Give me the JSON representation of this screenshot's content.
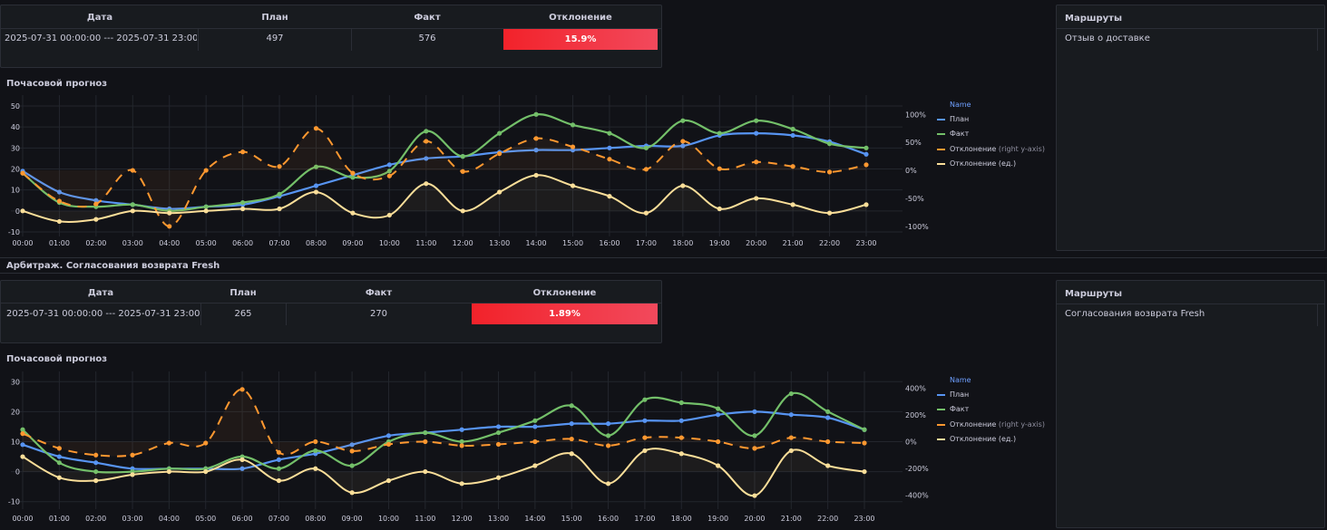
{
  "dashboards": [
    {
      "table": {
        "headers": [
          "Дата",
          "План",
          "Факт",
          "Отклонение"
        ],
        "row": [
          "2025-07-31 00:00:00 --- 2025-07-31 23:00:00",
          "497",
          "576",
          "15.9%"
        ]
      },
      "chart_title": "Почасовой прогноз",
      "routes": {
        "title": "Маршруты",
        "item": "Отзыв о доставке"
      }
    },
    {
      "section_title": "Арбитраж. Согласования возврата Fresh",
      "table": {
        "headers": [
          "Дата",
          "План",
          "Факт",
          "Отклонение"
        ],
        "row": [
          "2025-07-31 00:00:00 --- 2025-07-31 23:00:00",
          "265",
          "270",
          "1.89%"
        ]
      },
      "chart_title": "Почасовой прогноз",
      "routes": {
        "title": "Маршруты",
        "item": "Согласования возврата Fresh"
      }
    }
  ],
  "colors": {
    "plan": "#5794f2",
    "fact": "#73bf69",
    "dev_pct": "#ff9830",
    "dev_units": "#fade99",
    "deviation_bg": "#f2222a",
    "panel_bg": "#181b1f"
  },
  "legend": {
    "title": "Name",
    "items": [
      {
        "label": "План",
        "suffix": ""
      },
      {
        "label": "Факт",
        "suffix": ""
      },
      {
        "label": "Отклонение",
        "suffix": "(right y-axis)"
      },
      {
        "label": "Отклонение (ед.)",
        "suffix": ""
      }
    ]
  },
  "chart_data": [
    {
      "type": "line",
      "categories": [
        "00:00",
        "01:00",
        "02:00",
        "03:00",
        "04:00",
        "05:00",
        "06:00",
        "07:00",
        "08:00",
        "09:00",
        "10:00",
        "11:00",
        "12:00",
        "13:00",
        "14:00",
        "15:00",
        "16:00",
        "17:00",
        "18:00",
        "19:00",
        "20:00",
        "21:00",
        "22:00",
        "23:00"
      ],
      "y_ticks": [
        "-10",
        "0",
        "10",
        "20",
        "30",
        "40",
        "50"
      ],
      "ylim": [
        -10,
        50
      ],
      "y2_ticks": [
        "-100%",
        "-50%",
        "0%",
        "50%",
        "100%"
      ],
      "y2lim": [
        -110,
        115
      ],
      "series": [
        {
          "name": "План",
          "axis": "left",
          "values": [
            19,
            9,
            5,
            3,
            1,
            2,
            3,
            7,
            12,
            17,
            22,
            25,
            26,
            28,
            29,
            29,
            30,
            31,
            31,
            36,
            37,
            36,
            33,
            27
          ]
        },
        {
          "name": "Факт",
          "axis": "left",
          "values": [
            18,
            4,
            2,
            3,
            0,
            2,
            4,
            8,
            21,
            16,
            19,
            38,
            26,
            37,
            46,
            41,
            37,
            30,
            43,
            37,
            43,
            39,
            32,
            30
          ]
        },
        {
          "name": "Отклонение",
          "axis": "right",
          "values": [
            -5,
            -55,
            -60,
            0,
            -100,
            0,
            33,
            7,
            75,
            -5,
            -10,
            52,
            -2,
            30,
            57,
            42,
            20,
            2,
            52,
            3,
            15,
            7,
            -3,
            10
          ]
        },
        {
          "name": "Отклонение (ед.)",
          "axis": "left",
          "values": [
            0,
            -5,
            -4,
            0,
            -1,
            0,
            1,
            1,
            9,
            -1,
            -2,
            13,
            0,
            9,
            17,
            12,
            7,
            -1,
            12,
            1,
            6,
            3,
            -1,
            3
          ]
        }
      ]
    },
    {
      "type": "line",
      "categories": [
        "00:00",
        "01:00",
        "02:00",
        "03:00",
        "04:00",
        "05:00",
        "06:00",
        "07:00",
        "08:00",
        "09:00",
        "10:00",
        "11:00",
        "12:00",
        "13:00",
        "14:00",
        "15:00",
        "16:00",
        "17:00",
        "18:00",
        "19:00",
        "20:00",
        "21:00",
        "22:00",
        "23:00"
      ],
      "y_ticks": [
        "-10",
        "0",
        "10",
        "20",
        "30"
      ],
      "ylim": [
        -11,
        31
      ],
      "y2_ticks": [
        "-400%",
        "-200%",
        "0%",
        "200%",
        "400%"
      ],
      "y2lim": [
        -470,
        470
      ],
      "series": [
        {
          "name": "План",
          "axis": "left",
          "values": [
            9,
            5,
            3,
            1,
            1,
            1,
            1,
            4,
            6,
            9,
            12,
            13,
            14,
            15,
            15,
            16,
            16,
            17,
            17,
            19,
            20,
            19,
            18,
            14
          ]
        },
        {
          "name": "Факт",
          "axis": "left",
          "values": [
            14,
            3,
            0,
            0,
            1,
            1,
            5,
            1,
            7,
            2,
            10,
            13,
            10,
            13,
            17,
            22,
            12,
            24,
            23,
            21,
            12,
            26,
            20,
            14
          ]
        },
        {
          "name": "Отклонение",
          "axis": "right",
          "values": [
            60,
            -50,
            -100,
            -100,
            -10,
            -10,
            390,
            -80,
            0,
            -70,
            -20,
            0,
            -30,
            -20,
            0,
            20,
            -30,
            30,
            30,
            0,
            -50,
            30,
            0,
            -10
          ]
        },
        {
          "name": "Отклонение (ед.)",
          "axis": "left",
          "values": [
            5,
            -2,
            -3,
            -1,
            0,
            0,
            4,
            -3,
            1,
            -7,
            -3,
            0,
            -4,
            -2,
            2,
            6,
            -4,
            7,
            6,
            2,
            -8,
            7,
            2,
            0
          ]
        }
      ]
    }
  ]
}
